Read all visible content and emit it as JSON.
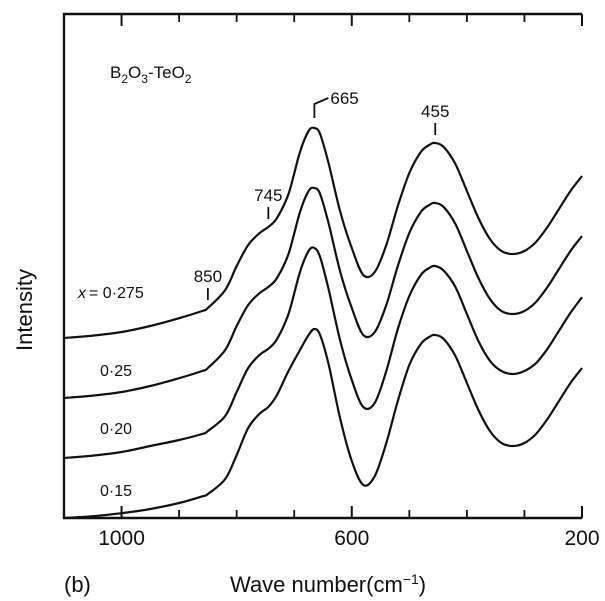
{
  "panel_label": "(b)",
  "chart_data": {
    "type": "line",
    "title": "",
    "xlabel": "Wave number(cm",
    "xlabel_sup": "−1",
    "xlabel_close": ")",
    "ylabel": "Intensity",
    "x_reversed": true,
    "xlim": [
      1100,
      200
    ],
    "x_ticks_major": [
      1000,
      600,
      200
    ],
    "x_ticks_minor": [
      900,
      800,
      700,
      500,
      400,
      300
    ],
    "x_tick_labels": [
      "1000",
      "600",
      "200"
    ],
    "grid": false,
    "annotation_text": {
      "formula_main": "B",
      "formula_sub1": "2",
      "formula_mid": "O",
      "formula_sub2": "3",
      "formula_mid2": "-TeO",
      "formula_sub3": "2"
    },
    "peaks": [
      {
        "label": "850",
        "x": 850
      },
      {
        "label": "745",
        "x": 745
      },
      {
        "label": "665",
        "x": 665
      },
      {
        "label": "455",
        "x": 455
      }
    ],
    "series": [
      {
        "name": "x = 0·275",
        "name_prefix": "x",
        "name_value": "= 0·275",
        "offset": 3,
        "x": [
          1100,
          1050,
          1000,
          950,
          900,
          860,
          850,
          820,
          800,
          780,
          760,
          745,
          730,
          710,
          690,
          675,
          665,
          655,
          640,
          620,
          600,
          580,
          560,
          540,
          520,
          500,
          480,
          465,
          455,
          440,
          420,
          400,
          380,
          360,
          340,
          320,
          300,
          280,
          260,
          240,
          220,
          200
        ],
        "y": [
          0.0,
          0.04,
          0.1,
          0.2,
          0.33,
          0.45,
          0.5,
          0.8,
          1.2,
          1.55,
          1.75,
          1.85,
          2.0,
          2.4,
          3.1,
          3.45,
          3.5,
          3.4,
          2.9,
          2.1,
          1.5,
          1.05,
          1.1,
          1.55,
          2.2,
          2.75,
          3.1,
          3.22,
          3.25,
          3.18,
          2.9,
          2.45,
          2.0,
          1.65,
          1.45,
          1.4,
          1.45,
          1.6,
          1.85,
          2.15,
          2.45,
          2.7
        ]
      },
      {
        "name": "0·25",
        "offset": 2,
        "x": [
          1100,
          1050,
          1000,
          950,
          900,
          860,
          850,
          820,
          800,
          780,
          760,
          745,
          730,
          710,
          690,
          675,
          665,
          655,
          640,
          620,
          600,
          580,
          560,
          540,
          520,
          500,
          480,
          465,
          455,
          440,
          420,
          400,
          380,
          360,
          340,
          320,
          300,
          280,
          260,
          240,
          220,
          200
        ],
        "y": [
          0.0,
          0.04,
          0.1,
          0.2,
          0.33,
          0.45,
          0.5,
          0.8,
          1.2,
          1.55,
          1.75,
          1.85,
          2.0,
          2.4,
          3.1,
          3.45,
          3.5,
          3.4,
          2.9,
          2.1,
          1.5,
          1.05,
          1.1,
          1.55,
          2.2,
          2.75,
          3.1,
          3.22,
          3.25,
          3.18,
          2.9,
          2.45,
          2.0,
          1.65,
          1.45,
          1.4,
          1.45,
          1.6,
          1.85,
          2.15,
          2.45,
          2.7
        ]
      },
      {
        "name": "0·20",
        "offset": 1,
        "x": [
          1100,
          1050,
          1000,
          950,
          900,
          860,
          850,
          820,
          800,
          780,
          760,
          745,
          730,
          710,
          690,
          675,
          665,
          655,
          640,
          620,
          600,
          580,
          560,
          540,
          520,
          500,
          480,
          465,
          455,
          440,
          420,
          400,
          380,
          360,
          340,
          320,
          300,
          280,
          260,
          240,
          220,
          200
        ],
        "y": [
          0.0,
          0.04,
          0.1,
          0.2,
          0.3,
          0.4,
          0.45,
          0.7,
          1.1,
          1.5,
          1.72,
          1.82,
          1.98,
          2.4,
          3.1,
          3.45,
          3.5,
          3.35,
          2.8,
          1.95,
          1.3,
          0.85,
          0.92,
          1.45,
          2.15,
          2.7,
          3.05,
          3.17,
          3.2,
          3.12,
          2.85,
          2.4,
          1.95,
          1.62,
          1.45,
          1.4,
          1.45,
          1.58,
          1.82,
          2.12,
          2.42,
          2.68
        ]
      },
      {
        "name": "0·15",
        "offset": 0,
        "x": [
          1100,
          1050,
          1000,
          950,
          900,
          860,
          850,
          820,
          800,
          780,
          760,
          745,
          730,
          710,
          690,
          675,
          665,
          655,
          640,
          620,
          600,
          580,
          560,
          540,
          520,
          500,
          480,
          465,
          455,
          440,
          420,
          400,
          380,
          360,
          340,
          320,
          300,
          280,
          260,
          240,
          220,
          200
        ],
        "y": [
          0.0,
          0.03,
          0.08,
          0.15,
          0.25,
          0.36,
          0.4,
          0.65,
          1.05,
          1.5,
          1.74,
          1.85,
          2.05,
          2.45,
          2.8,
          3.05,
          3.15,
          3.05,
          2.55,
          1.65,
          0.95,
          0.55,
          0.7,
          1.25,
          1.95,
          2.55,
          2.9,
          3.02,
          3.05,
          2.98,
          2.7,
          2.25,
          1.8,
          1.45,
          1.25,
          1.2,
          1.25,
          1.4,
          1.65,
          1.95,
          2.25,
          2.5
        ]
      }
    ]
  }
}
